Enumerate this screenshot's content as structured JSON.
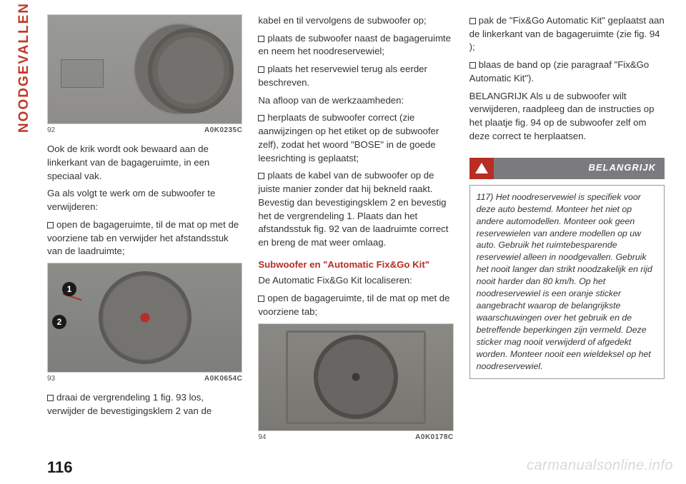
{
  "sideTab": "NOODGEVALLEN",
  "pageNumber": "116",
  "watermark": "carmanualsonline.info",
  "fig92": {
    "num": "92",
    "code": "A0K0235C"
  },
  "fig93": {
    "num": "93",
    "code": "A0K0654C",
    "badge1": "1",
    "badge2": "2"
  },
  "fig94": {
    "num": "94",
    "code": "A0K0178C"
  },
  "col1": {
    "p1": "Ook de krik wordt ook bewaard aan de linkerkant van de bagageruimte, in een speciaal vak.",
    "p2": "Ga als volgt te werk om de subwoofer te verwijderen:",
    "p3": "open de bagageruimte, til de mat op met de voorziene tab en verwijder het afstandsstuk van de laadruimte;",
    "p4": "draai de vergrendeling 1 fig. 93 los, verwijder de bevestigingsklem 2 van de"
  },
  "col2": {
    "p1": "kabel en til vervolgens de subwoofer op;",
    "p2": "plaats de subwoofer naast de bagageruimte en neem het noodreservewiel;",
    "p3": "plaats het reservewiel terug als eerder beschreven.",
    "p4": "Na afloop van de werkzaamheden:",
    "p5": "herplaats de subwoofer correct (zie aanwijzingen op het etiket op de subwoofer zelf), zodat het woord \"BOSE\" in de goede leesrichting is geplaatst;",
    "p6": "plaats de kabel van de subwoofer op de juiste manier zonder dat hij bekneld raakt. Bevestig dan bevestigingsklem 2 en bevestig het de vergrendeling 1. Plaats dan het afstandsstuk fig. 92 van de laadruimte correct en breng de mat weer omlaag.",
    "subhead": "Subwoofer en \"Automatic Fix&Go Kit\"",
    "p7": "De Automatic Fix&Go Kit localiseren:",
    "p8": "open de bagageruimte, til de mat op met de voorziene tab;"
  },
  "col3": {
    "p1": "pak de \"Fix&Go Automatic Kit\" geplaatst aan de linkerkant van de bagageruimte (zie fig. 94 );",
    "p2": "blaas de band op (zie paragraaf \"Fix&Go Automatic Kit\").",
    "p3": "BELANGRIJK Als u de subwoofer wilt verwijderen, raadpleeg dan de instructies op het plaatje fig. 94 op de subwoofer zelf om deze correct te herplaatsen.",
    "warnTitle": "BELANGRIJK",
    "warnBody": "117) Het noodreservewiel is specifiek voor deze auto bestemd. Monteer het niet op andere automodellen. Monteer ook geen reservewielen van andere modellen op uw auto. Gebruik het ruimtebesparende reservewiel alleen in noodgevallen. Gebruik het nooit langer dan strikt noodzakelijk en rijd nooit harder dan 80 km/h. Op het noodreservewiel is een oranje sticker aangebracht waarop de belangrijkste waarschuwingen over het gebruik en de betreffende beperkingen zijn vermeld. Deze sticker mag nooit verwijderd of afgedekt worden. Monteer nooit een wieldeksel op het noodreservewiel."
  }
}
